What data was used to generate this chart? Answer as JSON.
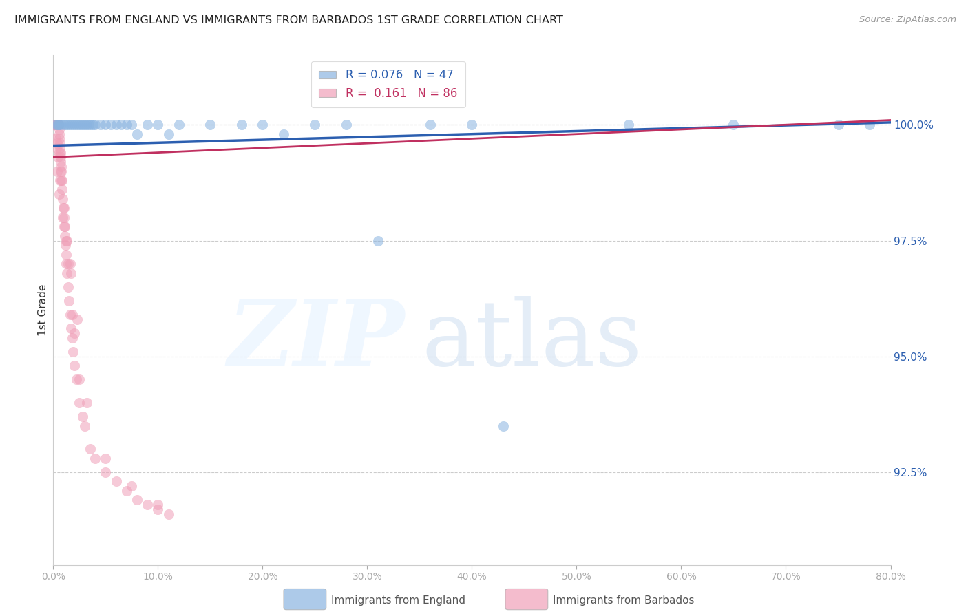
{
  "title": "IMMIGRANTS FROM ENGLAND VS IMMIGRANTS FROM BARBADOS 1ST GRADE CORRELATION CHART",
  "source": "Source: ZipAtlas.com",
  "ylabel": "1st Grade",
  "legend_england": "Immigrants from England",
  "legend_barbados": "Immigrants from Barbados",
  "r_england": 0.076,
  "n_england": 47,
  "r_barbados": 0.161,
  "n_barbados": 86,
  "color_england": "#8ab4e0",
  "color_barbados": "#f0a0b8",
  "trend_color_england": "#2c5fb0",
  "trend_color_barbados": "#c03060",
  "xlim": [
    0.0,
    80.0
  ],
  "ylim_bottom": 90.5,
  "ylim_top": 101.5,
  "yticks": [
    92.5,
    95.0,
    97.5,
    100.0
  ],
  "xtick_vals": [
    0.0,
    10.0,
    20.0,
    30.0,
    40.0,
    50.0,
    60.0,
    70.0,
    80.0
  ],
  "eng_x": [
    0.2,
    0.4,
    0.5,
    0.6,
    0.8,
    1.0,
    1.2,
    1.4,
    1.6,
    1.8,
    2.0,
    2.2,
    2.4,
    2.6,
    2.8,
    3.0,
    3.2,
    3.4,
    3.6,
    3.8,
    4.0,
    4.5,
    5.0,
    5.5,
    6.0,
    6.5,
    7.0,
    7.5,
    8.0,
    9.0,
    10.0,
    11.0,
    12.0,
    15.0,
    18.0,
    20.0,
    22.0,
    25.0,
    28.0,
    31.0,
    40.0,
    43.0,
    75.0,
    78.0,
    55.0,
    65.0,
    36.0
  ],
  "eng_y": [
    100.0,
    100.0,
    100.0,
    100.0,
    100.0,
    100.0,
    100.0,
    100.0,
    100.0,
    100.0,
    100.0,
    100.0,
    100.0,
    100.0,
    100.0,
    100.0,
    100.0,
    100.0,
    100.0,
    100.0,
    100.0,
    100.0,
    100.0,
    100.0,
    100.0,
    100.0,
    100.0,
    100.0,
    99.8,
    100.0,
    100.0,
    99.8,
    100.0,
    100.0,
    100.0,
    100.0,
    99.8,
    100.0,
    100.0,
    97.5,
    100.0,
    93.5,
    100.0,
    100.0,
    100.0,
    100.0,
    100.0
  ],
  "barb_x": [
    0.05,
    0.1,
    0.12,
    0.15,
    0.18,
    0.2,
    0.22,
    0.25,
    0.28,
    0.3,
    0.32,
    0.35,
    0.38,
    0.4,
    0.42,
    0.45,
    0.48,
    0.5,
    0.52,
    0.55,
    0.58,
    0.6,
    0.62,
    0.65,
    0.68,
    0.7,
    0.72,
    0.75,
    0.78,
    0.8,
    0.85,
    0.9,
    0.95,
    1.0,
    1.05,
    1.1,
    1.15,
    1.2,
    1.25,
    1.3,
    1.4,
    1.5,
    1.6,
    1.7,
    1.8,
    1.9,
    2.0,
    2.2,
    2.5,
    2.8,
    3.0,
    3.5,
    4.0,
    5.0,
    6.0,
    7.0,
    8.0,
    9.0,
    10.0,
    11.0,
    0.3,
    0.4,
    0.6,
    0.9,
    1.2,
    1.6,
    0.25,
    0.45,
    0.65,
    1.1,
    1.7,
    2.3,
    0.35,
    0.7,
    1.3,
    2.0,
    3.2,
    5.0,
    7.5,
    10.0,
    0.55,
    0.85,
    1.05,
    1.45,
    1.85,
    2.5
  ],
  "barb_y": [
    100.0,
    100.0,
    100.0,
    100.0,
    100.0,
    100.0,
    100.0,
    100.0,
    100.0,
    100.0,
    100.0,
    100.0,
    100.0,
    100.0,
    100.0,
    100.0,
    100.0,
    100.0,
    100.0,
    99.9,
    99.8,
    99.7,
    99.6,
    99.5,
    99.4,
    99.3,
    99.2,
    99.1,
    99.0,
    98.8,
    98.6,
    98.4,
    98.2,
    98.0,
    97.8,
    97.6,
    97.4,
    97.2,
    97.0,
    96.8,
    96.5,
    96.2,
    95.9,
    95.6,
    95.4,
    95.1,
    94.8,
    94.5,
    94.0,
    93.7,
    93.5,
    93.0,
    92.8,
    92.5,
    92.3,
    92.1,
    91.9,
    91.8,
    91.7,
    91.6,
    99.5,
    99.0,
    98.5,
    98.0,
    97.5,
    97.0,
    99.7,
    99.3,
    98.8,
    97.8,
    96.8,
    95.8,
    99.6,
    99.0,
    97.5,
    95.5,
    94.0,
    92.8,
    92.2,
    91.8,
    99.4,
    98.8,
    98.2,
    97.0,
    95.9,
    94.5
  ],
  "eng_trend_x0": 0.0,
  "eng_trend_x1": 80.0,
  "eng_trend_y0": 99.55,
  "eng_trend_y1": 100.05,
  "barb_trend_x0": 0.0,
  "barb_trend_x1": 80.0,
  "barb_trend_y0": 99.3,
  "barb_trend_y1": 100.1
}
